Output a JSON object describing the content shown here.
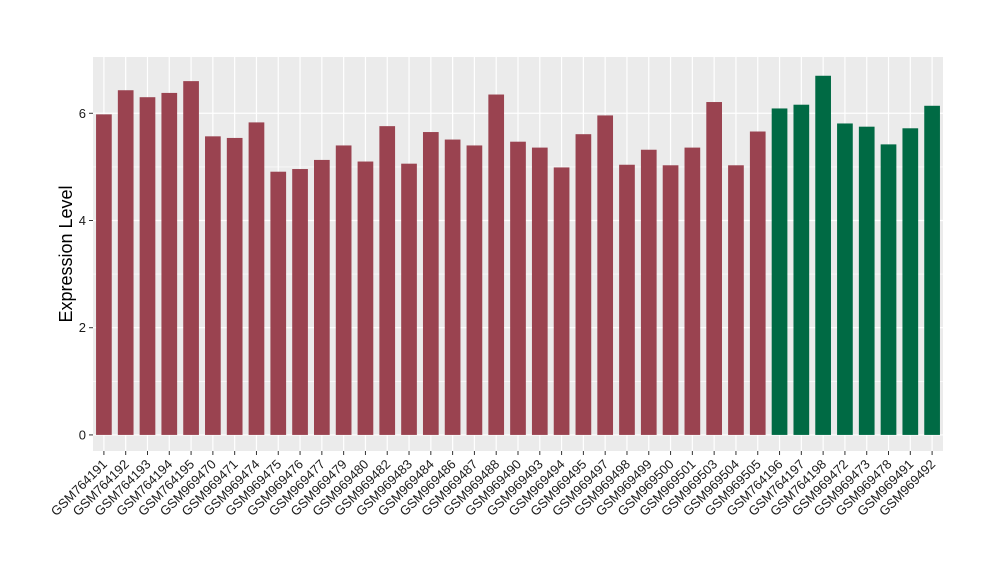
{
  "chart_data": {
    "type": "bar",
    "ylabel": "Expression Level",
    "xlabel": "",
    "ylim": [
      -0.3,
      7.05
    ],
    "yticks": [
      0,
      2,
      4,
      6
    ],
    "grid": true,
    "colors": {
      "group1": "#9a4350",
      "group2": "#006a44",
      "panel": "#ebebeb",
      "gridline": "#ffffff"
    },
    "categories": [
      "GSM764191",
      "GSM764192",
      "GSM764193",
      "GSM764194",
      "GSM764195",
      "GSM969470",
      "GSM969471",
      "GSM969474",
      "GSM969475",
      "GSM969476",
      "GSM969477",
      "GSM969479",
      "GSM969480",
      "GSM969482",
      "GSM969483",
      "GSM969484",
      "GSM969486",
      "GSM969487",
      "GSM969488",
      "GSM969490",
      "GSM969493",
      "GSM969494",
      "GSM969495",
      "GSM969497",
      "GSM969498",
      "GSM969499",
      "GSM969500",
      "GSM969501",
      "GSM969503",
      "GSM969504",
      "GSM969505",
      "GSM764196",
      "GSM764197",
      "GSM764198",
      "GSM969472",
      "GSM969473",
      "GSM969478",
      "GSM969491",
      "GSM969492"
    ],
    "values": [
      5.98,
      6.43,
      6.3,
      6.38,
      6.6,
      5.57,
      5.54,
      5.83,
      4.91,
      4.96,
      5.13,
      5.4,
      5.1,
      5.76,
      5.06,
      5.65,
      5.51,
      5.4,
      6.35,
      5.47,
      5.36,
      4.99,
      5.61,
      5.96,
      5.04,
      5.32,
      5.03,
      5.36,
      6.21,
      5.03,
      5.66,
      6.09,
      6.16,
      6.7,
      5.81,
      5.75,
      5.42,
      5.72,
      6.14
    ],
    "groups": [
      1,
      1,
      1,
      1,
      1,
      1,
      1,
      1,
      1,
      1,
      1,
      1,
      1,
      1,
      1,
      1,
      1,
      1,
      1,
      1,
      1,
      1,
      1,
      1,
      1,
      1,
      1,
      1,
      1,
      1,
      1,
      2,
      2,
      2,
      2,
      2,
      2,
      2,
      2
    ]
  }
}
